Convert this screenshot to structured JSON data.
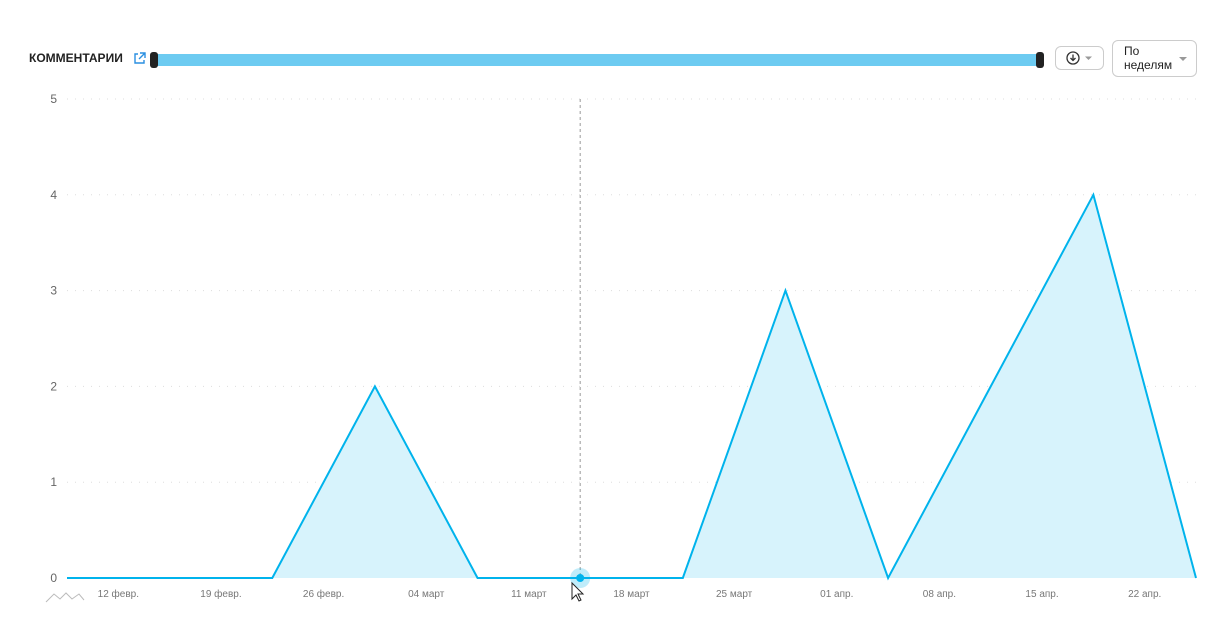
{
  "header": {
    "title": "КОММЕНТАРИИ"
  },
  "controls": {
    "period": "По неделям"
  },
  "chart_data": {
    "type": "area",
    "categories": [
      "12 февр.",
      "19 февр.",
      "26 февр.",
      "04 март",
      "11 март",
      "18 март",
      "25 март",
      "01 апр.",
      "08 апр.",
      "15 апр.",
      "22 апр.",
      null
    ],
    "values": [
      0,
      0,
      0,
      2,
      0,
      0,
      0,
      3,
      0,
      2,
      4,
      0
    ],
    "color": "#00b3ec",
    "fill_color": "#d7f3fc",
    "ylim": [
      0,
      5
    ],
    "yticks": [
      0,
      1,
      2,
      3,
      4,
      5
    ],
    "grid": true
  }
}
